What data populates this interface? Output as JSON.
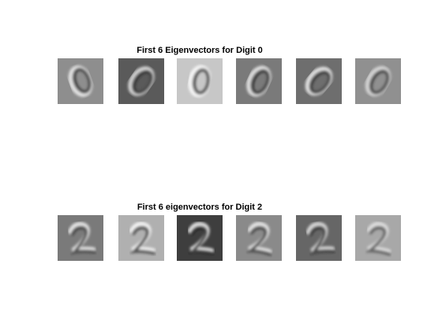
{
  "figure": {
    "rows": [
      {
        "title": "First 6 Eigenvectors for Digit 0",
        "digit": "0",
        "tiles": [
          {
            "bg": "#8e8e8e",
            "stroke_light": "#f2f2f2",
            "stroke_dark": "#1a1a1a",
            "tilt": -20,
            "style": "zero"
          },
          {
            "bg": "#5a5a5a",
            "stroke_light": "#e6e6e6",
            "stroke_dark": "#202020",
            "tilt": 35,
            "style": "zero"
          },
          {
            "bg": "#c7c7c7",
            "stroke_light": "#ffffff",
            "stroke_dark": "#1e1e1e",
            "tilt": 10,
            "style": "zero"
          },
          {
            "bg": "#7a7a7a",
            "stroke_light": "#f0f0f0",
            "stroke_dark": "#111111",
            "tilt": 25,
            "style": "zero"
          },
          {
            "bg": "#6e6e6e",
            "stroke_light": "#f5f5f5",
            "stroke_dark": "#202020",
            "tilt": 40,
            "style": "zero"
          },
          {
            "bg": "#909090",
            "stroke_light": "#e0e0e0",
            "stroke_dark": "#2a2a2a",
            "tilt": 30,
            "style": "zero"
          }
        ]
      },
      {
        "title": "First 6 eigenvectors for Digit 2",
        "digit": "2",
        "tiles": [
          {
            "bg": "#7a7a7a",
            "stroke_light": "#f5f5f5",
            "stroke_dark": "#1e1e1e",
            "tilt": -5,
            "style": "two"
          },
          {
            "bg": "#b0b0b0",
            "stroke_light": "#ffffff",
            "stroke_dark": "#141414",
            "tilt": 0,
            "style": "two"
          },
          {
            "bg": "#3e3e3e",
            "stroke_light": "#f5f5f5",
            "stroke_dark": "#101010",
            "tilt": 0,
            "style": "two"
          },
          {
            "bg": "#8a8a8a",
            "stroke_light": "#f2f2f2",
            "stroke_dark": "#1a1a1a",
            "tilt": 5,
            "style": "two"
          },
          {
            "bg": "#666666",
            "stroke_light": "#e8e8e8",
            "stroke_dark": "#141414",
            "tilt": -8,
            "style": "two"
          },
          {
            "bg": "#a8a8a8",
            "stroke_light": "#e6e6e6",
            "stroke_dark": "#3a3a3a",
            "tilt": 5,
            "style": "two"
          }
        ]
      }
    ]
  }
}
